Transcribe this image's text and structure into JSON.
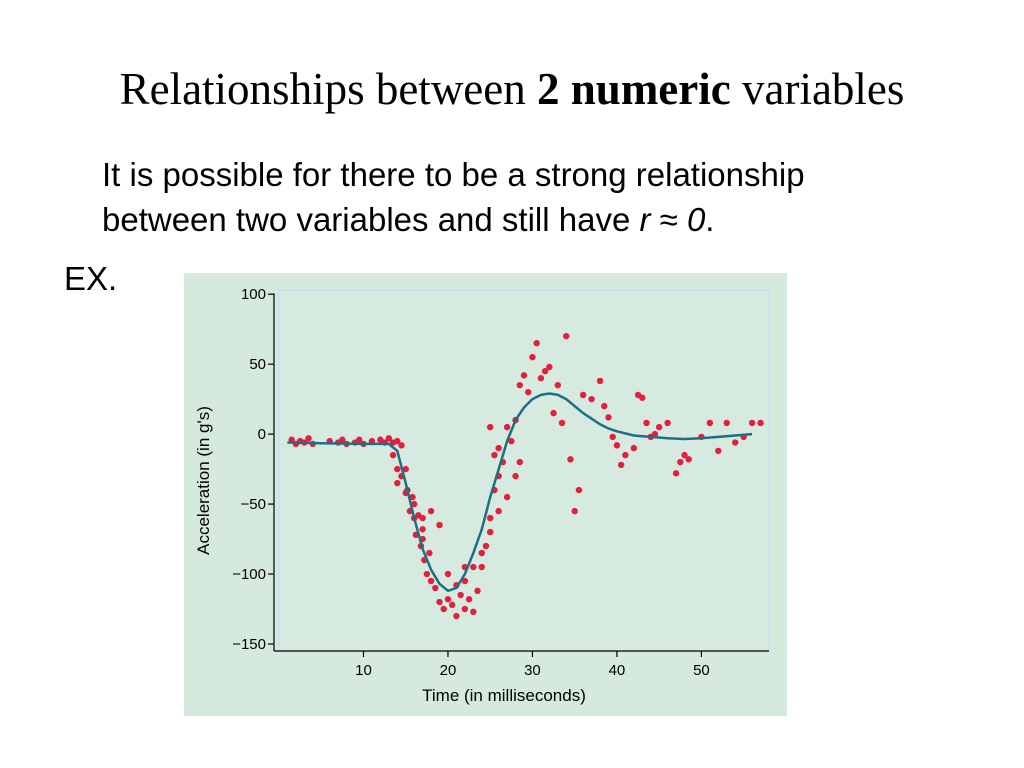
{
  "slide": {
    "title_pre": "Relationships between ",
    "title_bold": "2 numeric",
    "title_post": " variables",
    "bullet_part1": "It is possible for there to be a strong relationship",
    "bullet_part2": "between two variables and still have ",
    "bullet_r": "r",
    "bullet_approx": " ≈ ",
    "bullet_zero": "0",
    "bullet_end": ".",
    "example_label": "EX."
  },
  "colors": {
    "panel_bg": "#d5e9dd",
    "plot_bg": "#d6eadf",
    "point": "#e21f3c",
    "curve": "#1f6f84",
    "axis": "#000000"
  },
  "chart_data": {
    "type": "scatter",
    "xlabel": "Time (in milliseconds)",
    "ylabel": "Acceleration (in g's)",
    "xlim": [
      0,
      58
    ],
    "ylim": [
      -155,
      103
    ],
    "xticks": [
      10,
      20,
      30,
      40,
      50
    ],
    "yticks": [
      100,
      50,
      0,
      -50,
      -100,
      -150
    ],
    "grid": false,
    "points": [
      [
        1.5,
        -4
      ],
      [
        2,
        -7
      ],
      [
        2.5,
        -5
      ],
      [
        3,
        -6
      ],
      [
        3.5,
        -3
      ],
      [
        4,
        -7
      ],
      [
        6,
        -5
      ],
      [
        7,
        -6
      ],
      [
        7.5,
        -4
      ],
      [
        8,
        -7
      ],
      [
        9,
        -6
      ],
      [
        9.5,
        -4
      ],
      [
        10,
        -7
      ],
      [
        11,
        -5
      ],
      [
        12,
        -4
      ],
      [
        12.5,
        -6
      ],
      [
        13,
        -3
      ],
      [
        13.5,
        -6
      ],
      [
        14,
        -5
      ],
      [
        14.5,
        -8
      ],
      [
        13.5,
        -15
      ],
      [
        14,
        -25
      ],
      [
        14.5,
        -30
      ],
      [
        15,
        -25
      ],
      [
        15.2,
        -40
      ],
      [
        15.5,
        -55
      ],
      [
        15.8,
        -45
      ],
      [
        16,
        -60
      ],
      [
        16.2,
        -72
      ],
      [
        16.5,
        -58
      ],
      [
        16.8,
        -80
      ],
      [
        17,
        -68
      ],
      [
        17.2,
        -90
      ],
      [
        17.5,
        -100
      ],
      [
        17.8,
        -85
      ],
      [
        18,
        -105
      ],
      [
        18.5,
        -110
      ],
      [
        19,
        -120
      ],
      [
        19.5,
        -125
      ],
      [
        20,
        -118
      ],
      [
        20.5,
        -122
      ],
      [
        21,
        -130
      ],
      [
        21.5,
        -115
      ],
      [
        22,
        -125
      ],
      [
        22.5,
        -118
      ],
      [
        23,
        -127
      ],
      [
        23.5,
        -112
      ],
      [
        24,
        -95
      ],
      [
        24.5,
        -80
      ],
      [
        25,
        -60
      ],
      [
        25.5,
        -40
      ],
      [
        26,
        -30
      ],
      [
        26.5,
        -20
      ],
      [
        18,
        -55
      ],
      [
        19,
        -65
      ],
      [
        20,
        -100
      ],
      [
        21,
        -108
      ],
      [
        22,
        -105
      ],
      [
        23,
        -95
      ],
      [
        24,
        -85
      ],
      [
        25,
        -70
      ],
      [
        26,
        -55
      ],
      [
        27,
        -45
      ],
      [
        28,
        -30
      ],
      [
        28.5,
        -20
      ],
      [
        14,
        -35
      ],
      [
        15,
        -42
      ],
      [
        16,
        -50
      ],
      [
        17,
        -60
      ],
      [
        17,
        -75
      ],
      [
        22,
        -95
      ],
      [
        25,
        5
      ],
      [
        25.5,
        -15
      ],
      [
        26,
        -10
      ],
      [
        27,
        5
      ],
      [
        27.5,
        -5
      ],
      [
        28,
        10
      ],
      [
        28.5,
        35
      ],
      [
        29,
        42
      ],
      [
        29.5,
        30
      ],
      [
        30,
        55
      ],
      [
        30.5,
        65
      ],
      [
        31,
        40
      ],
      [
        31.5,
        45
      ],
      [
        32,
        48
      ],
      [
        32.5,
        15
      ],
      [
        33,
        35
      ],
      [
        33.5,
        8
      ],
      [
        34,
        70
      ],
      [
        34.5,
        -18
      ],
      [
        35,
        -55
      ],
      [
        35.5,
        -40
      ],
      [
        36,
        28
      ],
      [
        37,
        25
      ],
      [
        38,
        38
      ],
      [
        38.5,
        20
      ],
      [
        39,
        12
      ],
      [
        39.5,
        -2
      ],
      [
        40,
        -8
      ],
      [
        40.5,
        -22
      ],
      [
        41,
        -15
      ],
      [
        42,
        -10
      ],
      [
        42.5,
        28
      ],
      [
        43,
        26
      ],
      [
        43.5,
        8
      ],
      [
        44,
        -2
      ],
      [
        44.5,
        0
      ],
      [
        45,
        5
      ],
      [
        46,
        8
      ],
      [
        47,
        -28
      ],
      [
        47.5,
        -20
      ],
      [
        48,
        -15
      ],
      [
        48.5,
        -18
      ],
      [
        50,
        -2
      ],
      [
        51,
        8
      ],
      [
        52,
        -12
      ],
      [
        53,
        8
      ],
      [
        54,
        -6
      ],
      [
        55,
        -2
      ],
      [
        56,
        8
      ],
      [
        57,
        8
      ]
    ],
    "curve": [
      [
        1,
        -6
      ],
      [
        5,
        -6.5
      ],
      [
        10,
        -7
      ],
      [
        13,
        -7
      ],
      [
        14,
        -12
      ],
      [
        15,
        -35
      ],
      [
        16,
        -60
      ],
      [
        17,
        -82
      ],
      [
        18,
        -97
      ],
      [
        19,
        -107
      ],
      [
        20,
        -112
      ],
      [
        21,
        -110
      ],
      [
        22,
        -100
      ],
      [
        23,
        -85
      ],
      [
        24,
        -68
      ],
      [
        25,
        -45
      ],
      [
        26,
        -25
      ],
      [
        27,
        -5
      ],
      [
        28,
        10
      ],
      [
        29,
        19
      ],
      [
        30,
        25
      ],
      [
        31,
        28
      ],
      [
        32,
        29
      ],
      [
        33,
        28
      ],
      [
        34,
        25
      ],
      [
        35,
        20
      ],
      [
        36,
        15
      ],
      [
        37,
        11
      ],
      [
        38,
        7
      ],
      [
        39,
        4
      ],
      [
        40,
        2
      ],
      [
        42,
        -1
      ],
      [
        44,
        -2
      ],
      [
        46,
        -3
      ],
      [
        48,
        -3.5
      ],
      [
        50,
        -3
      ],
      [
        52,
        -2
      ],
      [
        54,
        -1
      ],
      [
        56,
        0
      ]
    ]
  }
}
